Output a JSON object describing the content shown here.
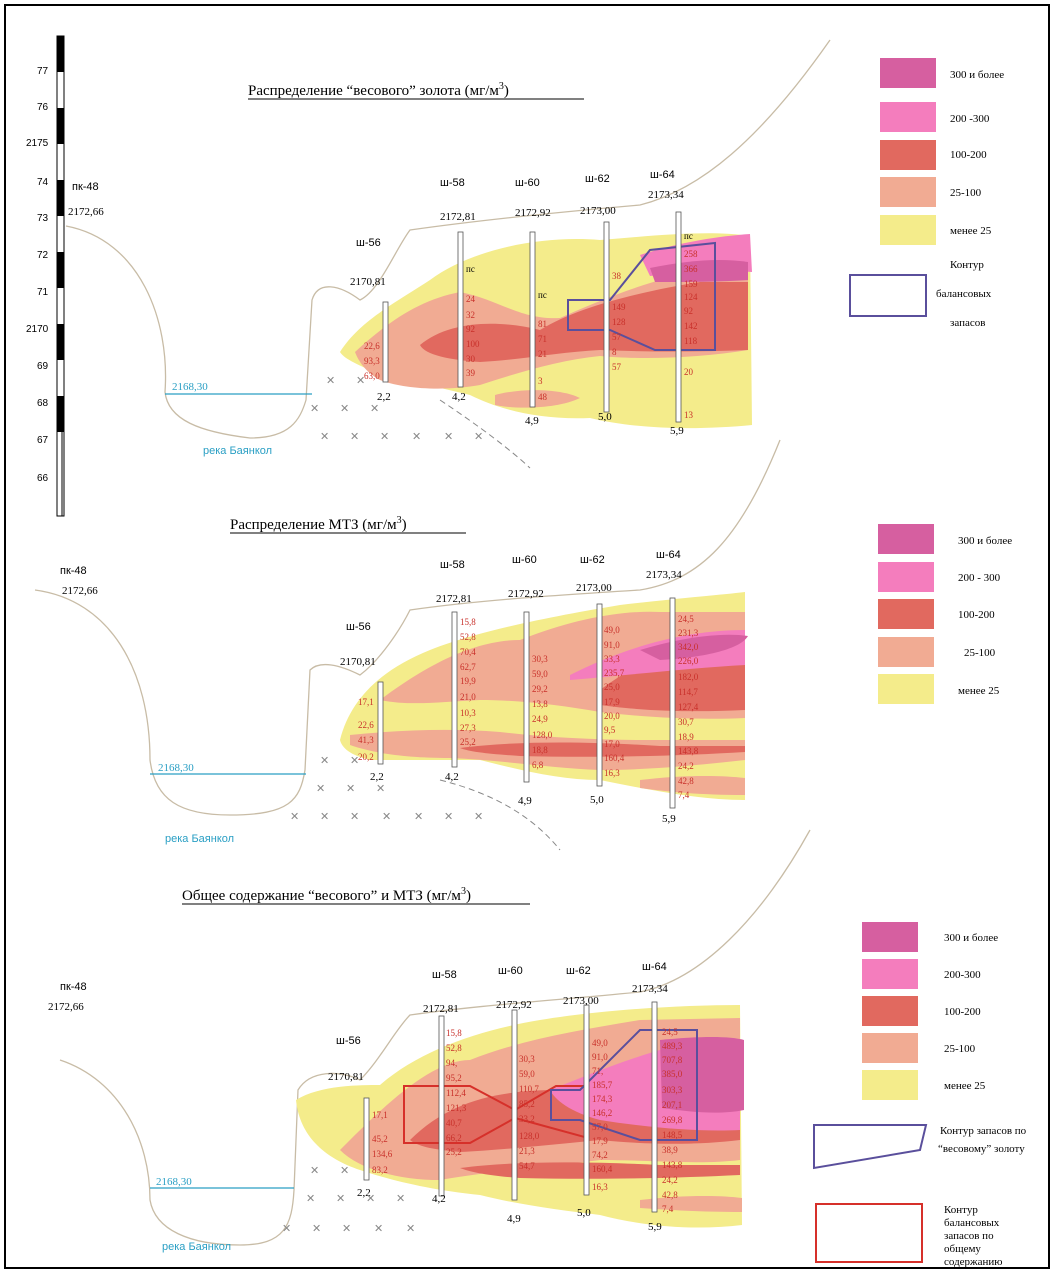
{
  "scale": {
    "labels": [
      "77",
      "76",
      "2175",
      "74",
      "73",
      "72",
      "71",
      "2170",
      "69",
      "68",
      "67",
      "66"
    ]
  },
  "panels": [
    {
      "title": "Распределение “весового” золота (мг/м",
      "title_sup": "3",
      "title_end": ")",
      "pk_label": "пк-48",
      "pk_elev": "2172,66",
      "water_level": "2168,30",
      "river": "река Баянкол",
      "shafts": [
        {
          "name": "ш-56",
          "elev": "2170,81",
          "depth": "2,2",
          "values": [
            "22,6",
            "93,3",
            "63,0"
          ]
        },
        {
          "name": "ш-58",
          "elev": "2172,81",
          "depth": "4,2",
          "values": [
            "пс",
            "24",
            "32",
            "92",
            "100",
            "30",
            "39"
          ]
        },
        {
          "name": "ш-60",
          "elev": "2172,92",
          "depth": "4,9",
          "values": [
            "пс",
            "81",
            "71",
            "21",
            "3",
            "48"
          ]
        },
        {
          "name": "ш-62",
          "elev": "2173,00",
          "depth": "5,0",
          "values": [
            "38",
            "149",
            "128",
            "57",
            "8",
            "57"
          ]
        },
        {
          "name": "ш-64",
          "elev": "2173,34",
          "depth": "5,9",
          "values": [
            "пс",
            "258",
            "366",
            "159",
            "124",
            "92",
            "142",
            "118",
            "20",
            "13"
          ]
        }
      ],
      "legend": [
        {
          "label": "300 и более",
          "color": "#d65fa0"
        },
        {
          "label": "200 -300",
          "color": "#f47dbd"
        },
        {
          "label": "100-200",
          "color": "#e1695f"
        },
        {
          "label": "25-100",
          "color": "#f1ab93"
        },
        {
          "label": "менее 25",
          "color": "#f4ec8b"
        }
      ],
      "contour_label": [
        "Контур",
        "балансовых",
        "запасов"
      ]
    },
    {
      "title": "Распределение  МТЗ  (мг/м",
      "title_sup": "3",
      "title_end": ")",
      "pk_label": "пк-48",
      "pk_elev": "2172,66",
      "water_level": "2168,30",
      "river": "река Баянкол",
      "shafts": [
        {
          "name": "ш-56",
          "elev": "2170,81",
          "depth": "2,2",
          "values": [
            "17,1",
            "22,6",
            "41,3",
            "20,2"
          ]
        },
        {
          "name": "ш-58",
          "elev": "2172,81",
          "depth": "4,2",
          "values": [
            "15,8",
            "52,8",
            "70,4",
            "62,7",
            "19,9",
            "21,0",
            "10,3",
            "27,3",
            "25,2"
          ]
        },
        {
          "name": "ш-60",
          "elev": "2172,92",
          "depth": "4,9",
          "values": [
            "30,3",
            "59,0",
            "29,2",
            "13,8",
            "24,9",
            "128,0",
            "18,8",
            "6,8"
          ]
        },
        {
          "name": "ш-62",
          "elev": "2173,00",
          "depth": "5,0",
          "values": [
            "49,0",
            "91,0",
            "33,3",
            "235,7",
            "25,0",
            "17,9",
            "20,0",
            "9,5",
            "17,0",
            "160,4",
            "16,3"
          ]
        },
        {
          "name": "ш-64",
          "elev": "2173,34",
          "depth": "5,9",
          "values": [
            "24,5",
            "231,3",
            "342,0",
            "226,0",
            "182,0",
            "114,7",
            "127,4",
            "30,7",
            "18,9",
            "143,8",
            "24,2",
            "42,8",
            "7,4"
          ]
        }
      ],
      "legend": [
        {
          "label": "300 и более",
          "color": "#d65fa0"
        },
        {
          "label": "200 - 300",
          "color": "#f47dbd"
        },
        {
          "label": "100-200",
          "color": "#e1695f"
        },
        {
          "label": "25-100",
          "color": "#f1ab93"
        },
        {
          "label": "менее 25",
          "color": "#f4ec8b"
        }
      ]
    },
    {
      "title": "Общее содержание “весового” и МТЗ (мг/м",
      "title_sup": "3",
      "title_end": ")",
      "pk_label": "пк-48",
      "pk_elev": "2172,66",
      "water_level": "2168,30",
      "river": "река Баянкол",
      "shafts": [
        {
          "name": "ш-56",
          "elev": "2170,81",
          "depth": "2,2",
          "values": [
            "17,1",
            "45,2",
            "134,6",
            "83,2"
          ]
        },
        {
          "name": "ш-58",
          "elev": "2172,81",
          "depth": "4,2",
          "values": [
            "15,8",
            "52,8",
            "94,",
            "95,2",
            "112,4",
            "121,3",
            "40,7",
            "66,2",
            "25,2"
          ]
        },
        {
          "name": "ш-60",
          "elev": "2172,92",
          "depth": "4,9",
          "values": [
            "30,3",
            "59,0",
            "110,7",
            "85,2",
            "33,2",
            "128,0",
            "21,3",
            "54,7"
          ]
        },
        {
          "name": "ш-62",
          "elev": "2173,00",
          "depth": "5,0",
          "values": [
            "49,0",
            "91,0",
            "71,",
            "185,7",
            "174,3",
            "146,2",
            "57,0",
            "17,9",
            "74,2",
            "160,4",
            "16,3"
          ]
        },
        {
          "name": "ш-64",
          "elev": "2173,34",
          "depth": "5,9",
          "values": [
            "24,5",
            "489,3",
            "707,8",
            "385,0",
            "303,3",
            "207,1",
            "269,8",
            "148,5",
            "38,9",
            "143,8",
            "24,2",
            "42,8",
            "7,4"
          ]
        }
      ],
      "legend": [
        {
          "label": "300 и более",
          "color": "#d65fa0"
        },
        {
          "label": "200-300",
          "color": "#f47dbd"
        },
        {
          "label": "100-200",
          "color": "#e1695f"
        },
        {
          "label": "25-100",
          "color": "#f1ab93"
        },
        {
          "label": "менее 25",
          "color": "#f4ec8b"
        }
      ],
      "contour1_label": [
        "Контур запасов по",
        "“весовому” золоту"
      ],
      "contour2_label": [
        "Контур",
        "балансовых",
        "запасов по",
        "общему",
        "содержанию"
      ]
    }
  ],
  "colors": {
    "yellow": "#f4ec8b",
    "peach": "#f1ab93",
    "red": "#e1695f",
    "pink": "#f47dbd",
    "magenta": "#d65fa0",
    "water": "#2a9fc4",
    "contour_blue": "#5a4f9c",
    "contour_red": "#d6302a",
    "terrain": "#c8bca6"
  }
}
